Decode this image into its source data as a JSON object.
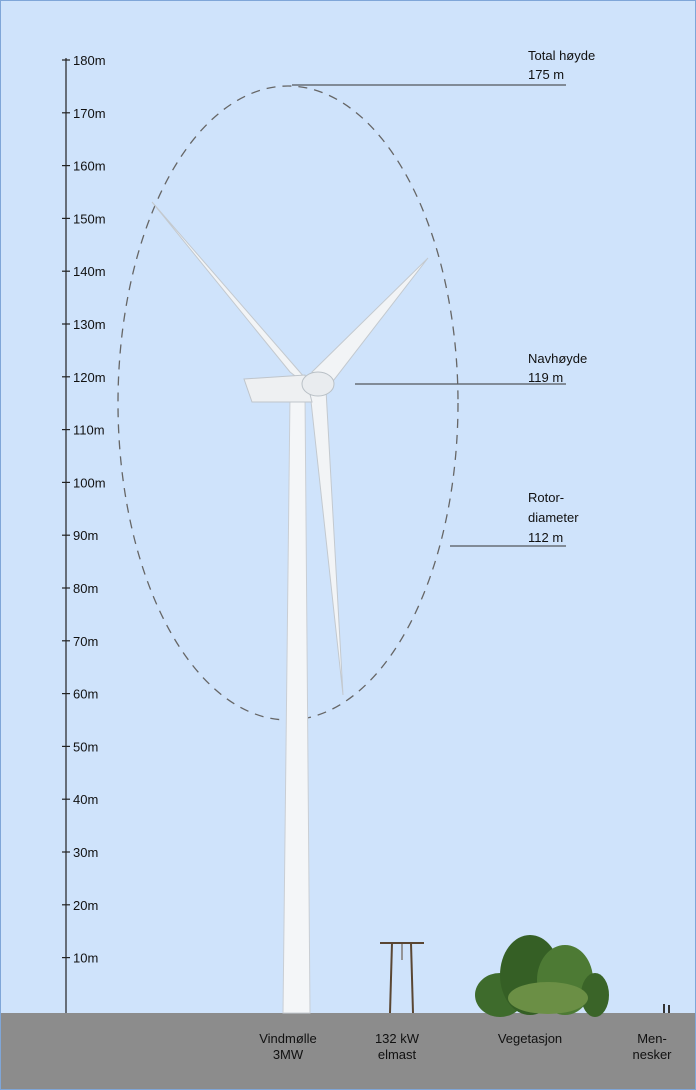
{
  "scale": {
    "ticks": [
      "180m",
      "170m",
      "160m",
      "150m",
      "140m",
      "130m",
      "120m",
      "110m",
      "100m",
      "90m",
      "80m",
      "70m",
      "60m",
      "50m",
      "40m",
      "30m",
      "20m",
      "10m"
    ]
  },
  "annotations": {
    "total_height": {
      "label": "Total høyde",
      "value": "175 m"
    },
    "hub_height": {
      "label": "Navhøyde",
      "value": "119 m"
    },
    "rotor_diameter": {
      "lines": [
        "Rotor-",
        "diameter"
      ],
      "value": "112 m"
    }
  },
  "objects": [
    {
      "lines": [
        "Vindmølle",
        "3MW"
      ]
    },
    {
      "lines": [
        "132 kW",
        "elmast"
      ]
    },
    {
      "lines": [
        "Vegetasjon"
      ]
    },
    {
      "lines": [
        "Men-",
        "nesker"
      ]
    }
  ]
}
